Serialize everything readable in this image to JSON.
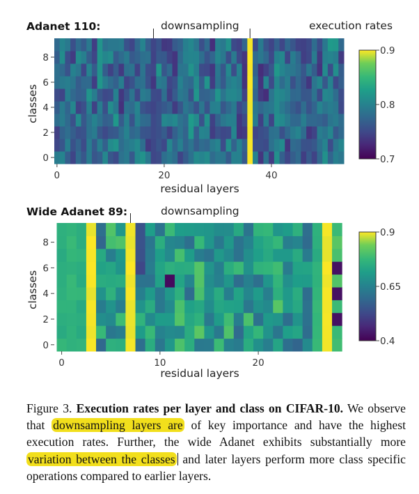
{
  "chart_data": [
    {
      "type": "heatmap",
      "title": "Adanet 110:",
      "annotations": [
        "downsampling",
        "execution rates"
      ],
      "xlabel": "residual layers",
      "ylabel": "classes",
      "x_ticks": [
        "0",
        "20",
        "40"
      ],
      "x_tick_values": [
        0,
        20,
        40
      ],
      "y_ticks": [
        "0",
        "2",
        "4",
        "6",
        "8"
      ],
      "y_tick_values": [
        0,
        2,
        4,
        6,
        8
      ],
      "n_layers": 54,
      "n_classes": 10,
      "downsampling_layers": [
        18,
        36
      ],
      "bright_layers": [
        36
      ],
      "colorbar": {
        "min": 0.7,
        "max": 0.9,
        "ticks": [
          "0.7",
          "0.8",
          "0.9"
        ],
        "tick_values": [
          0.7,
          0.8,
          0.9
        ]
      },
      "colorscale": "viridis"
    },
    {
      "type": "heatmap",
      "title": "Wide Adanet 89:",
      "annotations": [
        "downsampling"
      ],
      "xlabel": "residual layers",
      "ylabel": "classes",
      "x_ticks": [
        "0",
        "10",
        "20"
      ],
      "x_tick_values": [
        0,
        10,
        20
      ],
      "y_ticks": [
        "0",
        "2",
        "4",
        "6",
        "8"
      ],
      "y_tick_values": [
        0,
        2,
        4,
        6,
        8
      ],
      "n_layers": 29,
      "n_classes": 10,
      "downsampling_layers": [
        7
      ],
      "bright_layers": [
        3,
        7,
        27
      ],
      "colorbar": {
        "min": 0.4,
        "max": 0.9,
        "ticks": [
          "0.4",
          "0.65",
          "0.9"
        ],
        "tick_values": [
          0.4,
          0.65,
          0.9
        ]
      },
      "colorscale": "viridis"
    }
  ],
  "caption": {
    "label": "Figure 3.",
    "title": "Execution rates per layer and class on CIFAR-10.",
    "t1": "We observe that",
    "h1": "downsampling layers are",
    "t2": "of key importance and have the highest execution rates. Further, the wide Adanet exhibits substantially more",
    "h2": "variation between the classes",
    "t3": "and later layers perform more class specific operations compared to earlier layers."
  },
  "colors": {
    "highlight": "#f2df1c"
  }
}
